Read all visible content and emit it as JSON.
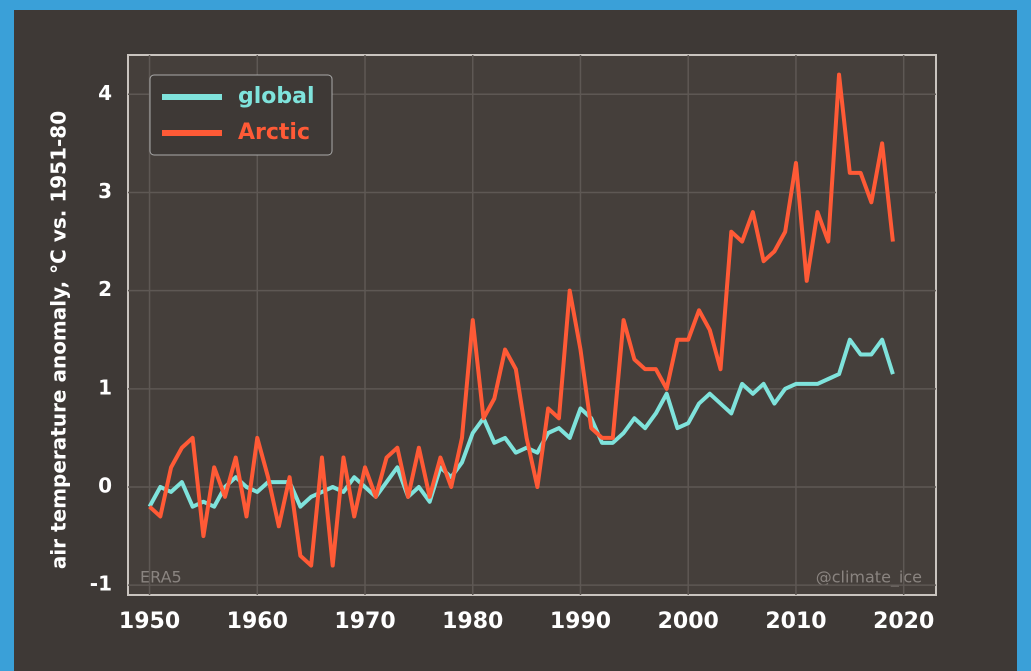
{
  "chart_data": {
    "type": "line",
    "ylabel": "air temperature anomaly, °C vs. 1951-80",
    "annotations": [
      "ERA5",
      "@climate_ice"
    ],
    "x": [
      1950,
      1951,
      1952,
      1953,
      1954,
      1955,
      1956,
      1957,
      1958,
      1959,
      1960,
      1961,
      1962,
      1963,
      1964,
      1965,
      1966,
      1967,
      1968,
      1969,
      1970,
      1971,
      1972,
      1973,
      1974,
      1975,
      1976,
      1977,
      1978,
      1979,
      1980,
      1981,
      1982,
      1983,
      1984,
      1985,
      1986,
      1987,
      1988,
      1989,
      1990,
      1991,
      1992,
      1993,
      1994,
      1995,
      1996,
      1997,
      1998,
      1999,
      2000,
      2001,
      2002,
      2003,
      2004,
      2005,
      2006,
      2007,
      2008,
      2009,
      2010,
      2011,
      2012,
      2013,
      2014,
      2015,
      2016,
      2017,
      2018,
      2019
    ],
    "series": [
      {
        "name": "global",
        "color": "#7fe3dc",
        "values": [
          -0.2,
          0.0,
          -0.05,
          0.05,
          -0.2,
          -0.15,
          -0.2,
          0.0,
          0.1,
          0.0,
          -0.05,
          0.05,
          0.05,
          0.05,
          -0.2,
          -0.1,
          -0.05,
          0.0,
          -0.05,
          0.1,
          0.0,
          -0.1,
          0.05,
          0.2,
          -0.1,
          0.0,
          -0.15,
          0.2,
          0.1,
          0.25,
          0.55,
          0.7,
          0.45,
          0.5,
          0.35,
          0.4,
          0.35,
          0.55,
          0.6,
          0.5,
          0.8,
          0.7,
          0.45,
          0.45,
          0.55,
          0.7,
          0.6,
          0.75,
          0.95,
          0.6,
          0.65,
          0.85,
          0.95,
          0.85,
          0.75,
          1.05,
          0.95,
          1.05,
          0.85,
          1.0,
          1.05,
          1.05,
          1.05,
          1.1,
          1.15,
          1.5,
          1.35,
          1.35,
          1.5,
          1.15
        ]
      },
      {
        "name": "Arctic",
        "color": "#ff5a36",
        "values": [
          -0.2,
          -0.3,
          0.2,
          0.4,
          0.5,
          -0.5,
          0.2,
          -0.1,
          0.3,
          -0.3,
          0.5,
          0.1,
          -0.4,
          0.1,
          -0.7,
          -0.8,
          0.3,
          -0.8,
          0.3,
          -0.3,
          0.2,
          -0.1,
          0.3,
          0.4,
          -0.1,
          0.4,
          -0.1,
          0.3,
          0.0,
          0.5,
          1.7,
          0.7,
          0.9,
          1.4,
          1.2,
          0.5,
          0.0,
          0.8,
          0.7,
          2.0,
          1.4,
          0.6,
          0.5,
          0.5,
          1.7,
          1.3,
          1.2,
          1.2,
          1.0,
          1.5,
          1.5,
          1.8,
          1.6,
          1.2,
          2.6,
          2.5,
          2.8,
          2.3,
          2.4,
          2.6,
          3.3,
          2.1,
          2.8,
          2.5,
          4.2,
          3.2,
          3.2,
          2.9,
          3.5,
          2.5
        ]
      }
    ],
    "xlim": [
      1948,
      2023
    ],
    "xticks": [
      1950,
      1960,
      1970,
      1980,
      1990,
      2000,
      2010,
      2020
    ],
    "ylim": [
      -1.1,
      4.4
    ],
    "yticks": [
      -1,
      0,
      1,
      2,
      3,
      4
    ],
    "grid": true,
    "legend": "upper left"
  }
}
